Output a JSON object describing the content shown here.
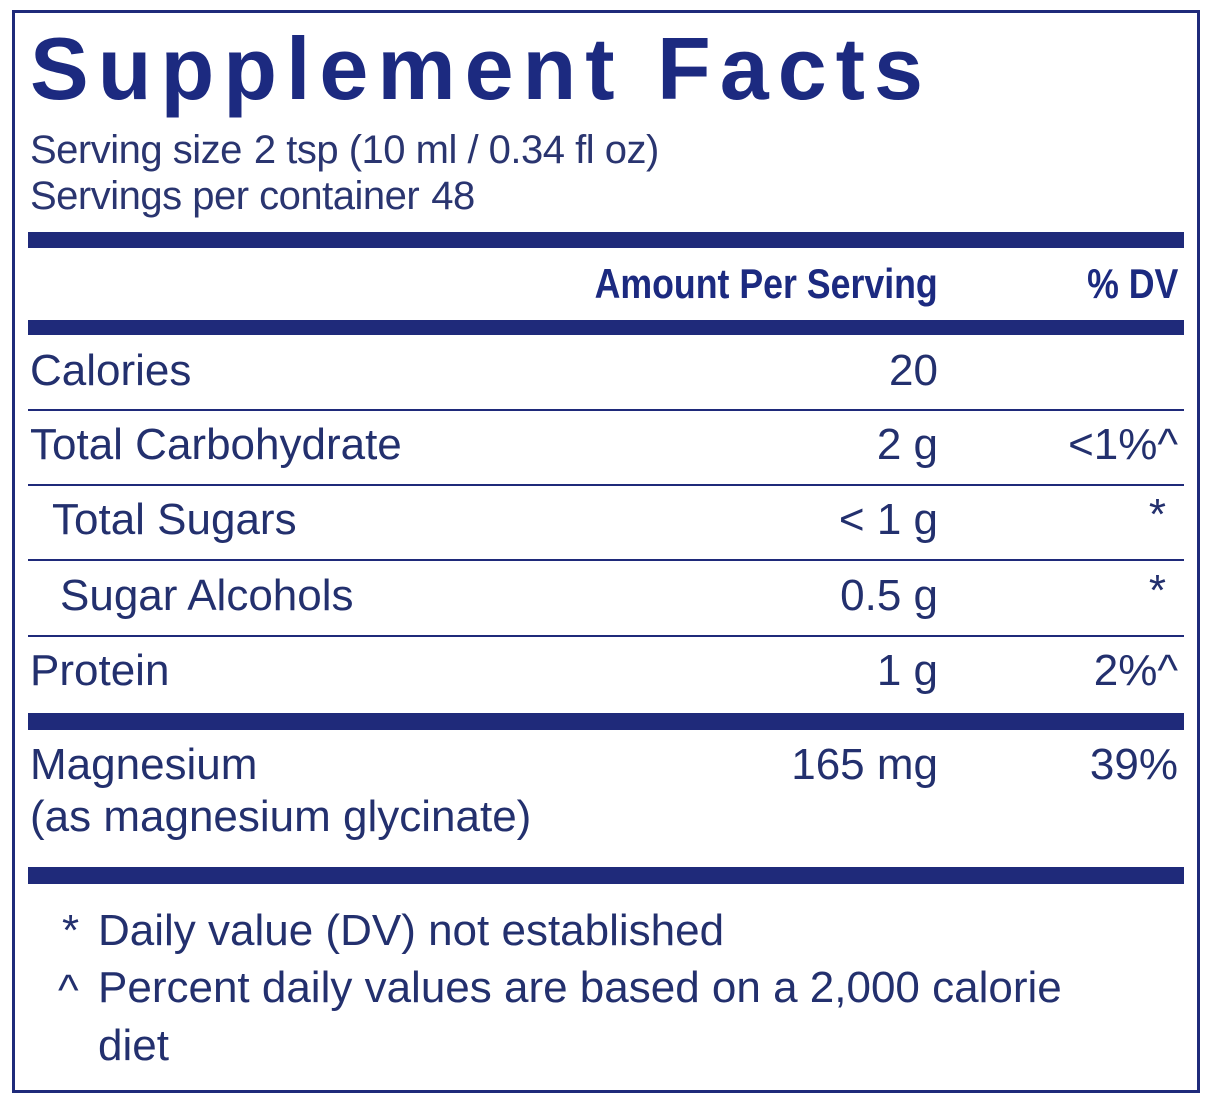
{
  "title": "Supplement Facts",
  "serving": {
    "size_label": "Serving size",
    "size": "2 tsp (10 ml / 0.34 fl oz)",
    "per_container_label": "Servings per container",
    "per_container": "48"
  },
  "header": {
    "amount": "Amount Per Serving",
    "dv": "% DV"
  },
  "rows": [
    {
      "name": "Calories",
      "amount": "20"
    },
    {
      "name": "Total Carbohydrate",
      "amount": "2 g",
      "dv": "<1%^"
    },
    {
      "name": "Total Sugars",
      "amount": "< 1 g",
      "dv": "*"
    },
    {
      "name": "Sugar Alcohols",
      "amount": "0.5 g",
      "dv": "*"
    },
    {
      "name": "Protein",
      "amount": "1 g",
      "dv": "2%^"
    },
    {
      "name": "Magnesium",
      "source": "(as magnesium glycinate)",
      "amount": "165 mg",
      "dv": "39%"
    }
  ],
  "footnotes": [
    {
      "mark": "*",
      "text": "Daily value (DV) not established"
    },
    {
      "mark": "^",
      "text": "Percent daily values are based on a 2,000 calorie diet"
    }
  ]
}
